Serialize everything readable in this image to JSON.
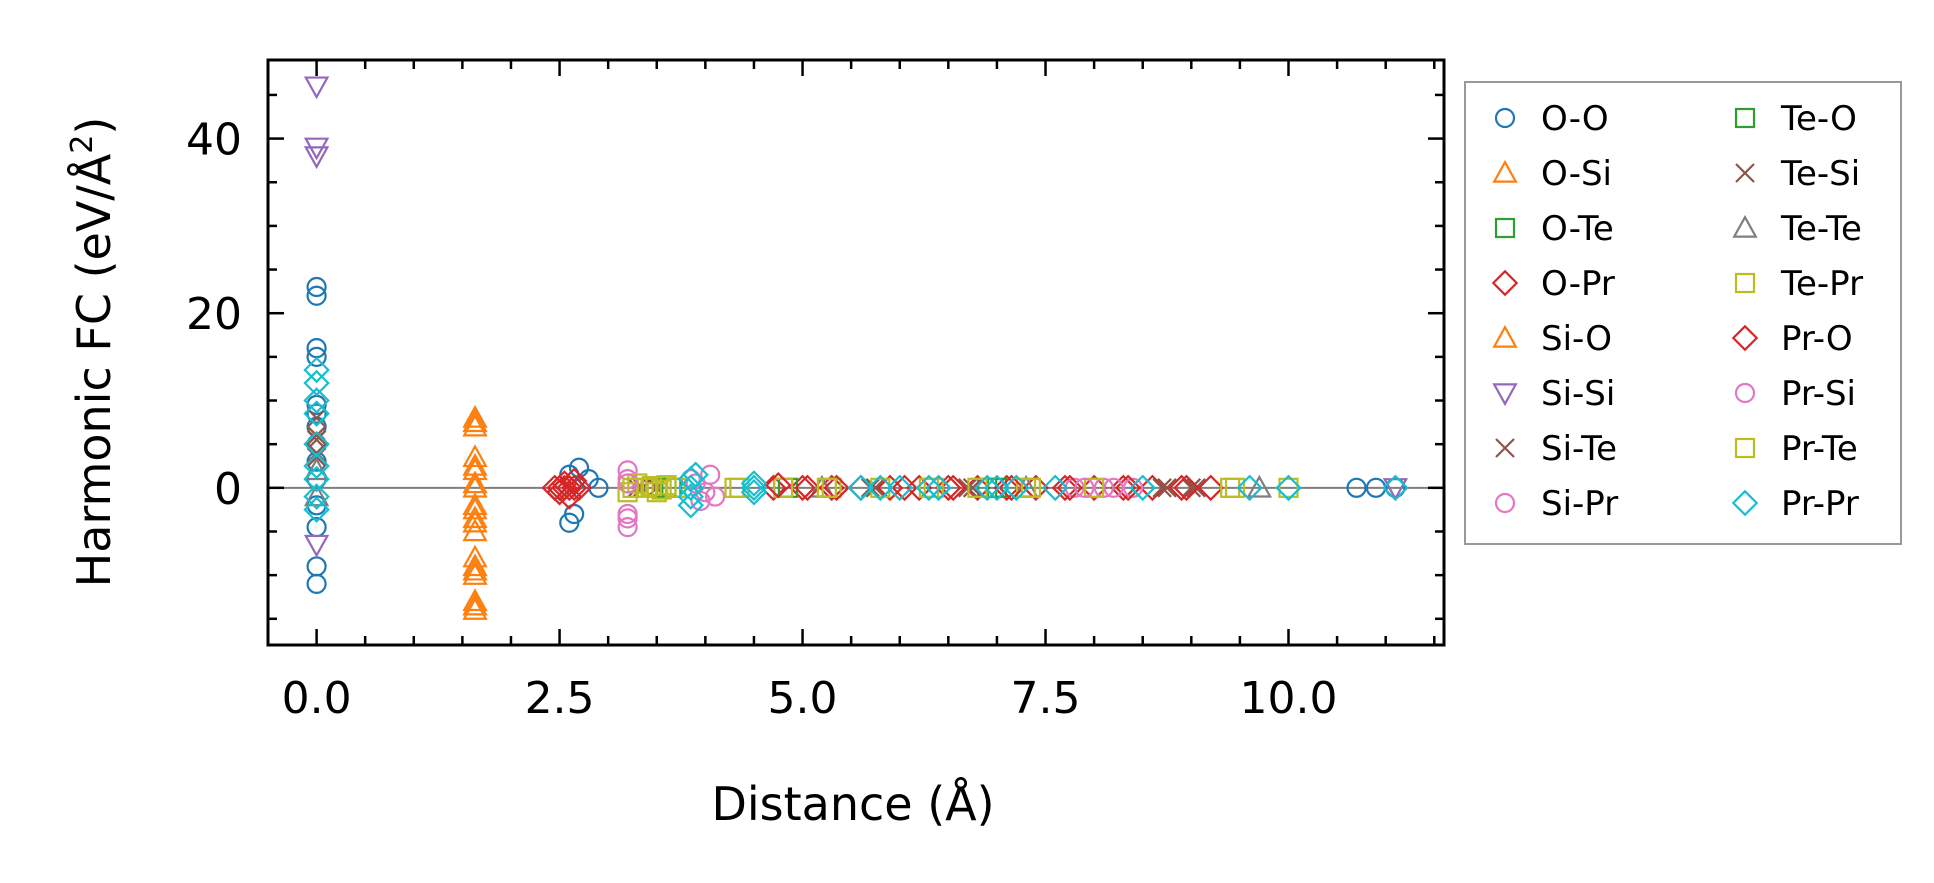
{
  "chart_data": {
    "type": "scatter",
    "title": "",
    "xlabel": "Distance (Å)",
    "ylabel_main": "Harmonic FC (eV/Å",
    "ylabel_sup": "2",
    "ylabel_close": ")",
    "xlim": [
      -0.5,
      11.6
    ],
    "ylim": [
      -18,
      49
    ],
    "xticks": [
      0.0,
      2.5,
      5.0,
      7.5,
      10.0
    ],
    "xtick_labels": [
      "0.0",
      "2.5",
      "5.0",
      "7.5",
      "10.0"
    ],
    "yticks": [
      0,
      20,
      40
    ],
    "ytick_labels": [
      "0",
      "20",
      "40"
    ],
    "grid": false,
    "zero_line": true,
    "legend_location": "outside-right",
    "legend_columns": 2,
    "series": [
      {
        "name": "O-O",
        "marker": "circle",
        "color": "#1f77b4",
        "points": [
          [
            0,
            -11
          ],
          [
            0,
            -9
          ],
          [
            0,
            -4.5
          ],
          [
            0,
            -2
          ],
          [
            0,
            1
          ],
          [
            0,
            3
          ],
          [
            0,
            5
          ],
          [
            0,
            7
          ],
          [
            0,
            8.5
          ],
          [
            0,
            9.5
          ],
          [
            0,
            15
          ],
          [
            0,
            16
          ],
          [
            0,
            22
          ],
          [
            0,
            23
          ],
          [
            2.6,
            -4
          ],
          [
            2.65,
            -3
          ],
          [
            2.7,
            2.3
          ],
          [
            2.6,
            1.5
          ],
          [
            2.8,
            1
          ],
          [
            2.9,
            0
          ],
          [
            10.7,
            0
          ],
          [
            10.9,
            0
          ],
          [
            11.1,
            0
          ]
        ]
      },
      {
        "name": "O-Si",
        "marker": "triangle-up",
        "color": "#ff7f0e",
        "points": [
          [
            1.63,
            -14
          ],
          [
            1.63,
            -13
          ],
          [
            1.63,
            -10
          ],
          [
            1.63,
            -9
          ],
          [
            1.63,
            -8
          ],
          [
            1.63,
            -5
          ],
          [
            1.63,
            -3.5
          ],
          [
            1.63,
            -2
          ],
          [
            1.63,
            0
          ],
          [
            1.63,
            2
          ],
          [
            1.63,
            3.5
          ],
          [
            1.63,
            7
          ],
          [
            1.63,
            8
          ]
        ]
      },
      {
        "name": "O-Te",
        "marker": "square",
        "color": "#2ca02c",
        "points": [
          [
            3.6,
            0
          ],
          [
            4.8,
            0
          ],
          [
            6.9,
            0
          ]
        ]
      },
      {
        "name": "O-Pr",
        "marker": "diamond",
        "color": "#d62728",
        "points": [
          [
            2.45,
            0
          ],
          [
            2.5,
            0
          ],
          [
            2.55,
            0
          ],
          [
            2.6,
            0
          ],
          [
            2.65,
            0
          ],
          [
            2.7,
            0
          ],
          [
            4.7,
            0
          ],
          [
            5.0,
            0
          ],
          [
            5.3,
            0
          ],
          [
            5.6,
            0
          ],
          [
            5.9,
            0
          ],
          [
            6.2,
            0
          ],
          [
            6.5,
            0
          ],
          [
            6.8,
            0
          ],
          [
            7.1,
            0
          ],
          [
            7.4,
            0
          ],
          [
            7.7,
            0
          ],
          [
            8.0,
            0
          ],
          [
            8.3,
            0
          ],
          [
            8.6,
            0
          ],
          [
            8.9,
            0
          ],
          [
            9.2,
            0
          ]
        ]
      },
      {
        "name": "Si-O",
        "marker": "triangle-up",
        "color": "#ff7f0e",
        "points": [
          [
            1.63,
            -13.5
          ],
          [
            1.63,
            -9.5
          ],
          [
            1.63,
            -4
          ],
          [
            1.63,
            -2.5
          ],
          [
            1.63,
            0.5
          ],
          [
            1.63,
            2.5
          ],
          [
            1.63,
            7.5
          ]
        ]
      },
      {
        "name": "Si-Si",
        "marker": "triangle-down",
        "color": "#9467bd",
        "points": [
          [
            0,
            46
          ],
          [
            0,
            39
          ],
          [
            0,
            38
          ],
          [
            0,
            -6.5
          ],
          [
            11.1,
            0
          ]
        ]
      },
      {
        "name": "Si-Te",
        "marker": "x",
        "color": "#8c564b",
        "points": [
          [
            0,
            4
          ],
          [
            0,
            6
          ],
          [
            0,
            8
          ],
          [
            3.3,
            0
          ],
          [
            3.5,
            0
          ],
          [
            5.7,
            0
          ],
          [
            6.7,
            0
          ],
          [
            8.7,
            0
          ],
          [
            9.0,
            0
          ]
        ]
      },
      {
        "name": "Si-Pr",
        "marker": "circle",
        "color": "#e377c2",
        "points": [
          [
            3.2,
            -4.5
          ],
          [
            3.2,
            -3.5
          ],
          [
            3.2,
            1
          ],
          [
            3.2,
            2
          ],
          [
            3.85,
            1
          ],
          [
            3.95,
            -1.5
          ],
          [
            4.05,
            1.5
          ],
          [
            4.1,
            -1
          ],
          [
            7.8,
            0
          ],
          [
            8.1,
            0
          ],
          [
            8.4,
            0
          ]
        ]
      },
      {
        "name": "Te-O",
        "marker": "square",
        "color": "#2ca02c",
        "points": [
          [
            3.65,
            0
          ],
          [
            4.85,
            0
          ],
          [
            7.0,
            0
          ]
        ]
      },
      {
        "name": "Te-Si",
        "marker": "x",
        "color": "#8c564b",
        "points": [
          [
            0,
            3.5
          ],
          [
            0,
            5.5
          ],
          [
            3.35,
            0
          ],
          [
            5.75,
            0
          ],
          [
            6.75,
            0
          ],
          [
            8.75,
            0
          ],
          [
            9.05,
            0
          ]
        ]
      },
      {
        "name": "Te-Te",
        "marker": "triangle-up",
        "color": "#7f7f7f",
        "points": [
          [
            0,
            2
          ],
          [
            0,
            -1
          ],
          [
            5.2,
            0
          ],
          [
            7.3,
            0
          ],
          [
            9.7,
            0
          ]
        ]
      },
      {
        "name": "Te-Pr",
        "marker": "square",
        "color": "#bcbd22",
        "points": [
          [
            3.2,
            -0.5
          ],
          [
            3.3,
            0.5
          ],
          [
            3.4,
            0
          ],
          [
            3.5,
            -0.5
          ],
          [
            3.6,
            0.3
          ],
          [
            3.7,
            0
          ],
          [
            4.3,
            0
          ],
          [
            4.8,
            0
          ],
          [
            5.3,
            0
          ],
          [
            5.8,
            0
          ],
          [
            6.3,
            0
          ],
          [
            6.8,
            0
          ],
          [
            7.3,
            0
          ],
          [
            8.0,
            0
          ],
          [
            9.4,
            0
          ],
          [
            10.0,
            0
          ]
        ]
      },
      {
        "name": "Pr-O",
        "marker": "diamond",
        "color": "#d62728",
        "points": [
          [
            2.5,
            -0.5
          ],
          [
            2.55,
            0.5
          ],
          [
            2.6,
            -1
          ],
          [
            2.65,
            0.8
          ],
          [
            4.75,
            0.3
          ],
          [
            5.05,
            0
          ],
          [
            5.35,
            0
          ],
          [
            6.05,
            0
          ],
          [
            6.55,
            0
          ],
          [
            7.15,
            0
          ],
          [
            7.75,
            0
          ],
          [
            8.35,
            0
          ],
          [
            8.95,
            0
          ]
        ]
      },
      {
        "name": "Pr-Si",
        "marker": "circle",
        "color": "#e377c2",
        "points": [
          [
            3.2,
            -3
          ],
          [
            3.2,
            0.5
          ],
          [
            3.9,
            0.5
          ],
          [
            4.0,
            -0.5
          ],
          [
            7.9,
            0
          ],
          [
            8.2,
            0
          ]
        ]
      },
      {
        "name": "Pr-Te",
        "marker": "square",
        "color": "#bcbd22",
        "points": [
          [
            3.25,
            0
          ],
          [
            3.45,
            0.2
          ],
          [
            3.55,
            -0.2
          ],
          [
            4.35,
            0
          ],
          [
            5.25,
            0
          ],
          [
            6.35,
            0
          ],
          [
            7.35,
            0
          ],
          [
            9.45,
            0
          ]
        ]
      },
      {
        "name": "Pr-Pr",
        "marker": "diamond",
        "color": "#17becf",
        "points": [
          [
            0,
            13.5
          ],
          [
            0,
            12
          ],
          [
            0,
            10
          ],
          [
            0,
            8.5
          ],
          [
            0,
            5
          ],
          [
            0,
            2.5
          ],
          [
            0,
            1
          ],
          [
            0,
            -1
          ],
          [
            0,
            -2.5
          ],
          [
            3.85,
            -2
          ],
          [
            3.85,
            -1
          ],
          [
            3.85,
            0
          ],
          [
            3.85,
            1
          ],
          [
            3.9,
            1.5
          ],
          [
            4.5,
            0
          ],
          [
            4.5,
            -0.5
          ],
          [
            4.5,
            0.5
          ],
          [
            5.6,
            0
          ],
          [
            5.8,
            0
          ],
          [
            6.0,
            0
          ],
          [
            6.3,
            0
          ],
          [
            6.4,
            0
          ],
          [
            6.9,
            0
          ],
          [
            7.0,
            0
          ],
          [
            7.2,
            0
          ],
          [
            7.6,
            0
          ],
          [
            8.5,
            0
          ],
          [
            9.6,
            0
          ],
          [
            10.0,
            0
          ],
          [
            11.1,
            0
          ]
        ]
      }
    ]
  }
}
